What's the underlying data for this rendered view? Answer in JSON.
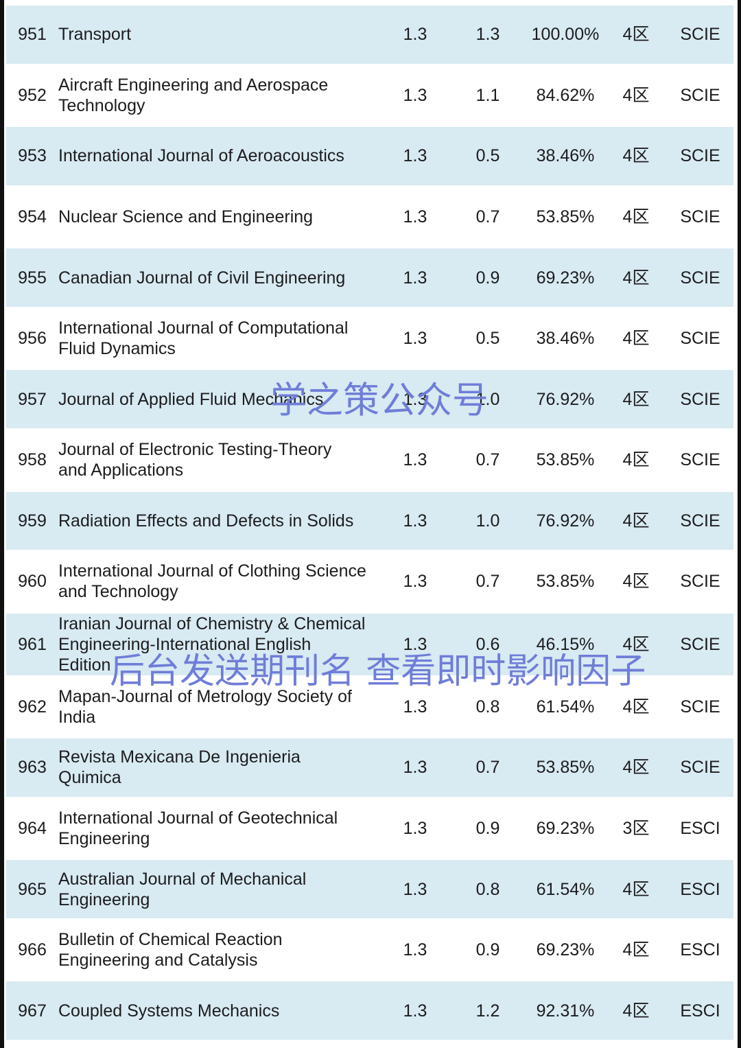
{
  "colors": {
    "row_alt": "#d8eaf2",
    "edge": "#101010",
    "text": "#1c1c1e",
    "watermark": "#6f7dd8"
  },
  "watermarks": [
    {
      "text": "学之策公众号"
    },
    {
      "text": "后台发送期刊名 查看即时影响因子"
    }
  ],
  "table": {
    "columns": [
      "rank",
      "journal_name",
      "impact_factor",
      "secondary_if",
      "percent",
      "quartile",
      "index"
    ],
    "rows": [
      {
        "rank": "951",
        "name": "Transport",
        "if1": "1.3",
        "if2": "1.3",
        "percent": "100.00%",
        "quartile": "4区",
        "index": "SCIE"
      },
      {
        "rank": "952",
        "name": "Aircraft Engineering and Aerospace\nTechnology",
        "if1": "1.3",
        "if2": "1.1",
        "percent": "84.62%",
        "quartile": "4区",
        "index": "SCIE"
      },
      {
        "rank": "953",
        "name": "International Journal of Aeroacoustics",
        "if1": "1.3",
        "if2": "0.5",
        "percent": "38.46%",
        "quartile": "4区",
        "index": "SCIE"
      },
      {
        "rank": "954",
        "name": "Nuclear Science and Engineering",
        "if1": "1.3",
        "if2": "0.7",
        "percent": "53.85%",
        "quartile": "4区",
        "index": "SCIE"
      },
      {
        "rank": "955",
        "name": "Canadian Journal of Civil Engineering",
        "if1": "1.3",
        "if2": "0.9",
        "percent": "69.23%",
        "quartile": "4区",
        "index": "SCIE"
      },
      {
        "rank": "956",
        "name": "International Journal of Computational\nFluid Dynamics",
        "if1": "1.3",
        "if2": "0.5",
        "percent": "38.46%",
        "quartile": "4区",
        "index": "SCIE"
      },
      {
        "rank": "957",
        "name": "Journal of Applied Fluid Mechanics",
        "if1": "1.3",
        "if2": "1.0",
        "percent": "76.92%",
        "quartile": "4区",
        "index": "SCIE"
      },
      {
        "rank": "958",
        "name": "Journal of Electronic Testing-Theory\nand Applications",
        "if1": "1.3",
        "if2": "0.7",
        "percent": "53.85%",
        "quartile": "4区",
        "index": "SCIE"
      },
      {
        "rank": "959",
        "name": "Radiation Effects and Defects in Solids",
        "if1": "1.3",
        "if2": "1.0",
        "percent": "76.92%",
        "quartile": "4区",
        "index": "SCIE"
      },
      {
        "rank": "960",
        "name": "International Journal of Clothing Science\nand Technology",
        "if1": "1.3",
        "if2": "0.7",
        "percent": "53.85%",
        "quartile": "4区",
        "index": "SCIE"
      },
      {
        "rank": "961",
        "name": "Iranian Journal of Chemistry & Chemical\nEngineering-International English\nEdition",
        "if1": "1.3",
        "if2": "0.6",
        "percent": "46.15%",
        "quartile": "4区",
        "index": "SCIE"
      },
      {
        "rank": "962",
        "name": "Mapan-Journal of Metrology Society of\nIndia",
        "if1": "1.3",
        "if2": "0.8",
        "percent": "61.54%",
        "quartile": "4区",
        "index": "SCIE"
      },
      {
        "rank": "963",
        "name": "Revista Mexicana De Ingenieria\nQuimica",
        "if1": "1.3",
        "if2": "0.7",
        "percent": "53.85%",
        "quartile": "4区",
        "index": "SCIE"
      },
      {
        "rank": "964",
        "name": "International Journal of Geotechnical\nEngineering",
        "if1": "1.3",
        "if2": "0.9",
        "percent": "69.23%",
        "quartile": "3区",
        "index": "ESCI"
      },
      {
        "rank": "965",
        "name": "Australian Journal of Mechanical\nEngineering",
        "if1": "1.3",
        "if2": "0.8",
        "percent": "61.54%",
        "quartile": "4区",
        "index": "ESCI"
      },
      {
        "rank": "966",
        "name": "Bulletin of Chemical Reaction\nEngineering and Catalysis",
        "if1": "1.3",
        "if2": "0.9",
        "percent": "69.23%",
        "quartile": "4区",
        "index": "ESCI"
      },
      {
        "rank": "967",
        "name": "Coupled Systems Mechanics",
        "if1": "1.3",
        "if2": "1.2",
        "percent": "92.31%",
        "quartile": "4区",
        "index": "ESCI"
      }
    ]
  }
}
